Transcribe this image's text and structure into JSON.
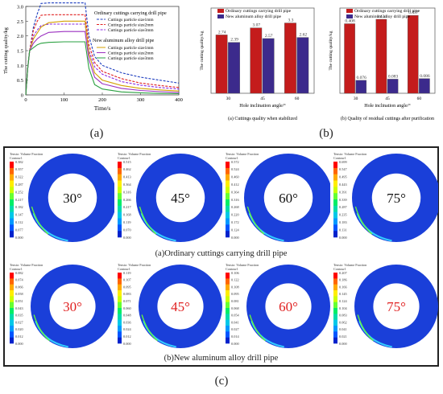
{
  "panel_a": {
    "caption": "(a)",
    "legend": {
      "ordinary_title": "Ordinary cuttings carrying drill pipe",
      "aluminum_title": "New aluminum alloy drill pipe",
      "ordinary_entries": [
        "Cuttings particle size1mm",
        "Cuttings particle size2mm",
        "Cuttings particle size3mm"
      ],
      "aluminum_entries": [
        "Cuttings particle size1mm",
        "Cuttings particle size2mm",
        "Cuttings particle size3mm"
      ]
    }
  },
  "panel_b": {
    "caption": "(b)",
    "left_caption": "(a) Cuttings quality when stabilized",
    "right_caption": "(b) Quality of residual cuttings after purification"
  },
  "panel_c": {
    "caption": "(c)",
    "row1_label": "(a)Ordinary cuttings carrying drill pipe",
    "row2_label": "(b)New aluminum alloy drill pipe",
    "colorbar_title_line1": "Tensio: Volume Fraction",
    "colorbar_title_line2": "Contour1",
    "colors": [
      "#ff0000",
      "#ff6600",
      "#ffaa00",
      "#ffee00",
      "#ccff00",
      "#66ff33",
      "#00ee66",
      "#00ddaa",
      "#00c8e8",
      "#0099ff",
      "#0055ff",
      "#0022cc"
    ],
    "row1": [
      {
        "angle": "30°",
        "ticks": [
          "0.382",
          "0.357",
          "0.322",
          "0.287",
          "0.252",
          "0.217",
          "0.182",
          "0.147",
          "0.112",
          "0.077",
          "0.000"
        ]
      },
      {
        "angle": "45°",
        "ticks": [
          "0.515",
          "0.462",
          "0.413",
          "0.364",
          "0.316",
          "0.266",
          "0.217",
          "0.168",
          "0.119",
          "0.070",
          "0.000"
        ]
      },
      {
        "angle": "60°",
        "ticks": [
          "0.572",
          "0.524",
          "0.460",
          "0.412",
          "0.364",
          "0.316",
          "0.268",
          "0.220",
          "0.172",
          "0.124",
          "0.000"
        ]
      },
      {
        "angle": "75°",
        "ticks": [
          "0.699",
          "0.547",
          "0.495",
          "0.443",
          "0.391",
          "0.339",
          "0.287",
          "0.235",
          "0.183",
          "0.131",
          "0.000"
        ]
      }
    ],
    "row2": [
      {
        "angle": "30°",
        "ticks": [
          "0.082",
          "0.074",
          "0.066",
          "0.058",
          "0.051",
          "0.043",
          "0.035",
          "0.027",
          "0.020",
          "0.012",
          "0.000"
        ]
      },
      {
        "angle": "45°",
        "ticks": [
          "0.119",
          "0.107",
          "0.095",
          "0.083",
          "0.071",
          "0.060",
          "0.048",
          "0.036",
          "0.024",
          "0.012",
          "0.000"
        ]
      },
      {
        "angle": "60°",
        "ticks": [
          "0.106",
          "0.122",
          "0.108",
          "0.095",
          "0.081",
          "0.068",
          "0.054",
          "0.041",
          "0.027",
          "0.014",
          "0.000"
        ]
      },
      {
        "angle": "75°",
        "ticks": [
          "0.207",
          "0.186",
          "0.166",
          "0.145",
          "0.124",
          "0.104",
          "0.083",
          "0.062",
          "0.041",
          "0.021",
          "0.000"
        ]
      }
    ]
  },
  "chart_data": [
    {
      "type": "line",
      "xlabel": "Time/s",
      "ylabel": "The cutting quality/kg",
      "xlim": [
        0,
        400
      ],
      "ylim": [
        0,
        3.0
      ],
      "xticks": [
        "0",
        "100",
        "200",
        "300",
        "400"
      ],
      "yticks": [
        "0",
        "0.5",
        "1.0",
        "1.5",
        "2.0",
        "2.5",
        "3.0"
      ],
      "series": [
        {
          "name": "Cuttings particle size1mm",
          "group": "Ordinary cuttings carrying drill pipe",
          "style": "dashed",
          "color": "#1f3fbf",
          "x": [
            0,
            5,
            10,
            20,
            30,
            40,
            60,
            100,
            140,
            155,
            165,
            180,
            200,
            250,
            300,
            350,
            400
          ],
          "y": [
            0,
            0.9,
            1.5,
            2.3,
            2.75,
            3.1,
            3.12,
            3.12,
            3.12,
            3.12,
            2.0,
            1.3,
            1.0,
            0.75,
            0.6,
            0.5,
            0.4
          ]
        },
        {
          "name": "Cuttings particle size2mm",
          "group": "Ordinary cuttings carrying drill pipe",
          "style": "dashed",
          "color": "#e02020",
          "x": [
            0,
            5,
            10,
            20,
            30,
            40,
            60,
            100,
            140,
            155,
            165,
            180,
            200,
            250,
            300,
            350,
            400
          ],
          "y": [
            0,
            0.9,
            1.5,
            2.2,
            2.5,
            2.7,
            2.72,
            2.72,
            2.72,
            2.72,
            1.7,
            1.1,
            0.8,
            0.55,
            0.4,
            0.32,
            0.25
          ]
        },
        {
          "name": "Cuttings particle size3mm",
          "group": "Ordinary cuttings carrying drill pipe",
          "style": "dashed",
          "color": "#8a2be2",
          "x": [
            0,
            5,
            10,
            20,
            30,
            40,
            60,
            100,
            140,
            155,
            165,
            180,
            200,
            250,
            300,
            350,
            400
          ],
          "y": [
            0,
            0.9,
            1.5,
            2.0,
            2.2,
            2.35,
            2.4,
            2.4,
            2.4,
            2.4,
            1.5,
            0.95,
            0.7,
            0.45,
            0.33,
            0.25,
            0.2
          ]
        },
        {
          "name": "Cuttings particle size1mm",
          "group": "New aluminum alloy drill pipe",
          "style": "solid",
          "color": "#d4a000",
          "x": [
            0,
            5,
            10,
            20,
            30,
            40,
            60,
            100,
            140,
            155,
            165,
            180,
            200,
            250,
            300,
            350,
            400
          ],
          "y": [
            0,
            0.9,
            1.5,
            1.9,
            2.1,
            2.3,
            2.45,
            2.5,
            2.5,
            2.5,
            1.4,
            0.75,
            0.5,
            0.32,
            0.22,
            0.17,
            0.13
          ]
        },
        {
          "name": "Cuttings particle size2mm",
          "group": "New aluminum alloy drill pipe",
          "style": "solid",
          "color": "#9b30c0",
          "x": [
            0,
            5,
            10,
            20,
            30,
            40,
            60,
            100,
            140,
            155,
            165,
            180,
            200,
            250,
            300,
            350,
            400
          ],
          "y": [
            0,
            0.9,
            1.5,
            1.75,
            1.9,
            2.0,
            2.12,
            2.15,
            2.15,
            2.15,
            1.2,
            0.6,
            0.38,
            0.22,
            0.15,
            0.11,
            0.08
          ]
        },
        {
          "name": "Cuttings particle size3mm",
          "group": "New aluminum alloy drill pipe",
          "style": "solid",
          "color": "#2aa040",
          "x": [
            0,
            5,
            10,
            20,
            30,
            40,
            60,
            100,
            140,
            155,
            165,
            180,
            200,
            250,
            300,
            350,
            400
          ],
          "y": [
            0,
            0.9,
            1.5,
            1.6,
            1.7,
            1.75,
            1.78,
            1.8,
            1.8,
            1.8,
            0.9,
            0.35,
            0.2,
            0.1,
            0.07,
            0.05,
            0.04
          ]
        }
      ]
    },
    {
      "type": "bar",
      "xlabel": "Hole inclination angle/°",
      "ylabel": "The cutting quality/kg",
      "categories": [
        "30",
        "45",
        "60"
      ],
      "ylim": [
        0,
        4
      ],
      "series": [
        {
          "name": "Ordinary cuttings carrying drill pipe",
          "color": "#c41c1c",
          "values": [
            2.74,
            3.07,
            3.3
          ],
          "labels": [
            "2.74",
            "3.07",
            "3.3"
          ]
        },
        {
          "name": "New aluminum alloy drill pipe",
          "color": "#3c2a8c",
          "values": [
            2.39,
            2.57,
            2.62
          ],
          "labels": [
            "2.39",
            "2.57",
            "2.62"
          ]
        }
      ]
    },
    {
      "type": "bar",
      "xlabel": "Hole inclination angle/°",
      "ylabel": "The cutting quality/kg",
      "categories": [
        "30",
        "45",
        "60"
      ],
      "ylim": [
        0,
        0.5
      ],
      "series": [
        {
          "name": "Ordinary cuttings carrying drill pipe",
          "color": "#c41c1c",
          "values": [
            0.408,
            0.434,
            0.457
          ],
          "labels": [
            "0.408",
            "0.434",
            "0.457"
          ]
        },
        {
          "name": "New aluminum alloy drill pipe",
          "color": "#3c2a8c",
          "values": [
            0.076,
            0.083,
            0.086
          ],
          "labels": [
            "0.076",
            "0.083",
            "0.086"
          ]
        }
      ]
    }
  ]
}
